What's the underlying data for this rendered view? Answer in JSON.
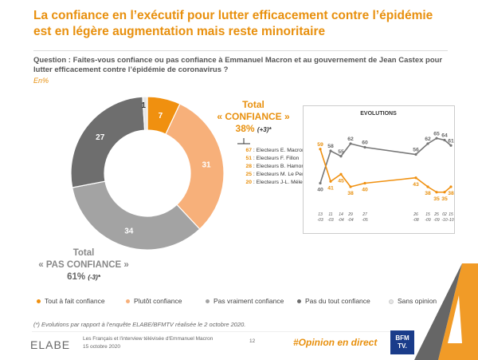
{
  "title": "La confiance en l’exécutif pour lutter efficacement contre l’épidémie est en légère augmentation mais reste minoritaire",
  "question": "Question : Faites-vous confiance ou pas confiance à Emmanuel Macron et au gouvernement de Jean Castex pour lutter efficacement contre l’épidémie de coronavirus ?",
  "unit": "En%",
  "total_confiance": {
    "label1": "Total",
    "label2": "« CONFIANCE »",
    "pct": "38%",
    "change": "(+3)*"
  },
  "total_pas_confiance": {
    "label1": "Total",
    "label2": "« PAS CONFIANCE »",
    "pct": "61%",
    "change": "(-3)*"
  },
  "electors": [
    {
      "value": "67",
      "label": ": Electeurs E. Macron"
    },
    {
      "value": "51",
      "label": ": Electeurs F. Fillon"
    },
    {
      "value": "28",
      "label": ": Electeurs B. Hamon"
    },
    {
      "value": "25",
      "label": ": Electeurs M. Le Pen"
    },
    {
      "value": "20",
      "label": ": Electeurs J-L. Mélenchon"
    }
  ],
  "legend": [
    {
      "label": "Tout à fait confiance",
      "color": "#f0900f"
    },
    {
      "label": "Plutôt confiance",
      "color": "#f7b07a"
    },
    {
      "label": "Pas vraiment confiance",
      "color": "#a3a3a3"
    },
    {
      "label": "Pas du tout confiance",
      "color": "#6e6e6e"
    },
    {
      "label": "Sans opinion",
      "color": "#e6e6e6"
    }
  ],
  "footnote": "(*) Evolutions par rapport à l’enquête ELABE/BFMTV réalisée le 2 octobre 2020.",
  "footer": {
    "brand": "ELABE",
    "line1": "Les Français et l'interview télévisée d'Emmanuel Macron",
    "line2": "15 octobre 2020",
    "page": "12",
    "hashtag": "#Opinion en direct",
    "bfm_line1": "BFM",
    "bfm_line2": "TV."
  },
  "chart_data": [
    {
      "type": "pie",
      "subtype": "donut",
      "categories": [
        "Tout à fait confiance",
        "Plutôt confiance",
        "Pas vraiment confiance",
        "Pas du tout confiance",
        "Sans opinion"
      ],
      "values": [
        7,
        31,
        34,
        27,
        1
      ],
      "colors": [
        "#f0900f",
        "#f7b07a",
        "#a3a3a3",
        "#6e6e6e",
        "#e6e6e6"
      ]
    },
    {
      "type": "line",
      "title": "EVOLUTIONS",
      "x": [
        "13 -03",
        "11 -03",
        "14 -04",
        "29 -04",
        "27 -05",
        "26 -08",
        "15 -09",
        "25 -09",
        "02 -10",
        "15 -10"
      ],
      "x_top": [
        "13",
        "11",
        "14",
        "29",
        "27",
        "26",
        "15",
        "25",
        "02",
        "15"
      ],
      "x_bottom": [
        "-03",
        "-03",
        "-04",
        "-04",
        "-05",
        "-08",
        "-09",
        "-09",
        "-10",
        "-10"
      ],
      "series": [
        {
          "name": "Pas confiance",
          "color": "#777777",
          "values": [
            40,
            58,
            55,
            62,
            60,
            56,
            62,
            65,
            64,
            61
          ]
        },
        {
          "name": "Confiance",
          "color": "#f0900f",
          "values": [
            59,
            41,
            45,
            38,
            40,
            43,
            38,
            35,
            35,
            38
          ]
        }
      ],
      "ylim": [
        30,
        70
      ]
    }
  ]
}
